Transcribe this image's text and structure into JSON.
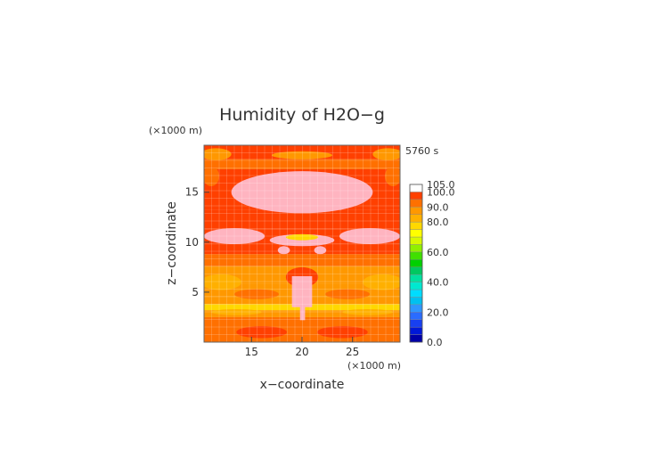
{
  "chart_data": {
    "type": "heatmap",
    "title": "Humidity of H2O−g",
    "xlabel": "x−coordinate",
    "ylabel": "z−coordinate",
    "x_unit": "(×1000 m)",
    "y_unit": "(×1000 m)",
    "time_label": "5760 s",
    "xlim": [
      10.3,
      29.7
    ],
    "ylim": [
      0,
      19.7
    ],
    "x_ticks": [
      15,
      20,
      25
    ],
    "y_ticks": [
      5,
      10,
      15
    ],
    "colorbar": {
      "levels": [
        0.0,
        5.0,
        10.0,
        15.0,
        20.0,
        25.0,
        30.0,
        35.0,
        40.0,
        45.0,
        50.0,
        55.0,
        60.0,
        65.0,
        70.0,
        75.0,
        80.0,
        85.0,
        90.0,
        95.0,
        100.0,
        105.0
      ],
      "colors": [
        "#0000a8",
        "#0018d8",
        "#1840f0",
        "#2a6cff",
        "#2f96ff",
        "#00c0f0",
        "#00dcff",
        "#00e8d0",
        "#00e0a0",
        "#00c860",
        "#00d000",
        "#40e000",
        "#90f000",
        "#d8f800",
        "#ffff00",
        "#ffd800",
        "#ffb000",
        "#ff9800",
        "#ff7000",
        "#ff4000",
        "#ff0000"
      ],
      "top_color": "#ffffff",
      "labels": [
        "0.0",
        "20.0",
        "40.0",
        "60.0",
        "80.0",
        "90.0",
        "100.0",
        "105.0"
      ]
    },
    "bands": [
      {
        "z0": 0.0,
        "z1": 2.5,
        "value": 90
      },
      {
        "z0": 2.5,
        "z1": 3.2,
        "value": 85
      },
      {
        "z0": 3.2,
        "z1": 3.8,
        "value": 78
      },
      {
        "z0": 3.8,
        "z1": 4.6,
        "value": 86
      },
      {
        "z0": 4.6,
        "z1": 5.8,
        "value": 88
      },
      {
        "z0": 5.8,
        "z1": 7.6,
        "value": 87
      },
      {
        "z0": 7.6,
        "z1": 8.8,
        "value": 91
      },
      {
        "z0": 8.8,
        "z1": 9.8,
        "value": 96
      },
      {
        "z0": 9.8,
        "z1": 11.3,
        "value": 97
      },
      {
        "z0": 11.3,
        "z1": 13.2,
        "value": 98
      },
      {
        "z0": 13.2,
        "z1": 17.3,
        "value": 97
      },
      {
        "z0": 17.3,
        "z1": 18.3,
        "value": 92
      },
      {
        "z0": 18.3,
        "z1": 19.7,
        "value": 96
      }
    ],
    "regions": [
      {
        "shape": "ellipse",
        "cx": 20,
        "cz": 15.0,
        "rx": 7.0,
        "rz": 2.1,
        "value": 102
      },
      {
        "shape": "ellipse",
        "cx": 13.3,
        "cz": 10.6,
        "rx": 3.0,
        "rz": 0.8,
        "value": 102
      },
      {
        "shape": "ellipse",
        "cx": 26.7,
        "cz": 10.6,
        "rx": 3.0,
        "rz": 0.8,
        "value": 102
      },
      {
        "shape": "ellipse",
        "cx": 20,
        "cz": 10.2,
        "rx": 3.2,
        "rz": 0.6,
        "value": 102
      },
      {
        "shape": "ellipse",
        "cx": 20,
        "cz": 10.5,
        "rx": 1.6,
        "rz": 0.3,
        "value": 75
      },
      {
        "shape": "ellipse",
        "cx": 18.2,
        "cz": 9.2,
        "rx": 0.6,
        "rz": 0.4,
        "value": 102
      },
      {
        "shape": "ellipse",
        "cx": 21.8,
        "cz": 9.2,
        "rx": 0.6,
        "rz": 0.4,
        "value": 102
      },
      {
        "shape": "ellipse",
        "cx": 20,
        "cz": 18.7,
        "rx": 3.0,
        "rz": 0.4,
        "value": 88
      },
      {
        "shape": "ellipse",
        "cx": 12.0,
        "cz": 6.0,
        "rx": 2.0,
        "rz": 0.8,
        "value": 84
      },
      {
        "shape": "ellipse",
        "cx": 28.0,
        "cz": 6.0,
        "rx": 2.0,
        "rz": 0.8,
        "value": 84
      },
      {
        "shape": "ellipse",
        "cx": 15.5,
        "cz": 4.8,
        "rx": 2.2,
        "rz": 0.5,
        "value": 92
      },
      {
        "shape": "ellipse",
        "cx": 24.5,
        "cz": 4.8,
        "rx": 2.2,
        "rz": 0.5,
        "value": 92
      },
      {
        "shape": "ellipse",
        "cx": 20,
        "cz": 6.5,
        "rx": 1.6,
        "rz": 1.0,
        "value": 96
      },
      {
        "shape": "rect",
        "x0": 19.0,
        "x1": 21.0,
        "z0": 3.5,
        "z1": 6.6,
        "value": 102
      },
      {
        "shape": "rect",
        "x0": 19.8,
        "x1": 20.3,
        "z0": 2.2,
        "z1": 3.6,
        "value": 102
      },
      {
        "shape": "ellipse",
        "cx": 13.5,
        "cz": 3.0,
        "rx": 2.5,
        "rz": 0.3,
        "value": 80
      },
      {
        "shape": "ellipse",
        "cx": 26.5,
        "cz": 3.0,
        "rx": 2.5,
        "rz": 0.3,
        "value": 80
      },
      {
        "shape": "ellipse",
        "cx": 16.0,
        "cz": 1.0,
        "rx": 2.5,
        "rz": 0.6,
        "value": 95
      },
      {
        "shape": "ellipse",
        "cx": 24.0,
        "cz": 1.0,
        "rx": 2.5,
        "rz": 0.6,
        "value": 95
      },
      {
        "shape": "ellipse",
        "cx": 11.5,
        "cz": 18.8,
        "rx": 1.5,
        "rz": 0.6,
        "value": 88
      },
      {
        "shape": "ellipse",
        "cx": 28.5,
        "cz": 18.8,
        "rx": 1.5,
        "rz": 0.6,
        "value": 88
      },
      {
        "shape": "ellipse",
        "cx": 29.0,
        "cz": 16.6,
        "rx": 0.8,
        "rz": 1.0,
        "value": 92
      },
      {
        "shape": "ellipse",
        "cx": 11.0,
        "cz": 16.6,
        "rx": 0.8,
        "rz": 1.0,
        "value": 92
      }
    ]
  }
}
